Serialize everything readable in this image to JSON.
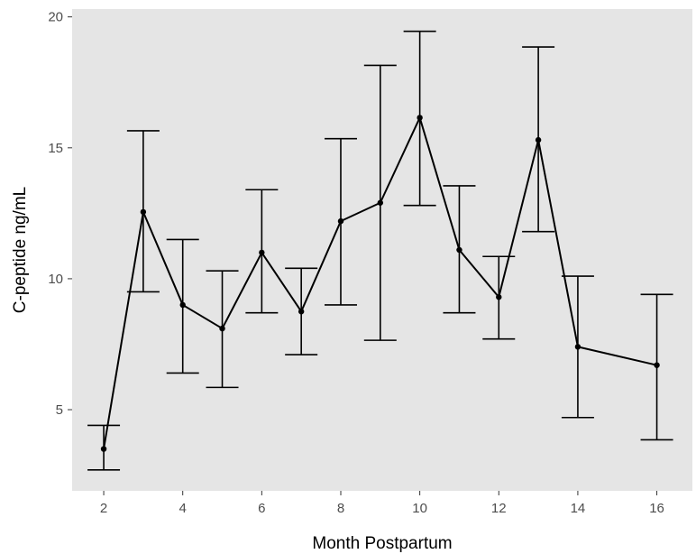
{
  "colors": {
    "panel_background": "#e5e5e5",
    "series": "#000000",
    "tick_label": "#4d4d4d"
  },
  "chart_data": {
    "type": "line",
    "title": "",
    "xlabel": "Month Postpartum",
    "ylabel": "C-peptide ng/mL",
    "xlim": [
      1.2,
      16.9
    ],
    "ylim": [
      1.9,
      20.3
    ],
    "x_ticks": [
      2,
      4,
      6,
      8,
      10,
      12,
      14,
      16
    ],
    "y_ticks": [
      5,
      10,
      15,
      20
    ],
    "grid": false,
    "legend": "none",
    "error_bars": true,
    "series": [
      {
        "points": [
          {
            "x": 2,
            "y": 3.5,
            "lower": 2.7,
            "upper": 4.4
          },
          {
            "x": 3,
            "y": 12.55,
            "lower": 9.5,
            "upper": 15.65
          },
          {
            "x": 4,
            "y": 9.0,
            "lower": 6.4,
            "upper": 11.5
          },
          {
            "x": 5,
            "y": 8.1,
            "lower": 5.85,
            "upper": 10.3
          },
          {
            "x": 6,
            "y": 11.0,
            "lower": 8.7,
            "upper": 13.4
          },
          {
            "x": 7,
            "y": 8.75,
            "lower": 7.1,
            "upper": 10.4
          },
          {
            "x": 8,
            "y": 12.2,
            "lower": 9.0,
            "upper": 15.35
          },
          {
            "x": 9,
            "y": 12.9,
            "lower": 7.65,
            "upper": 18.15
          },
          {
            "x": 10,
            "y": 16.15,
            "lower": 12.8,
            "upper": 19.45
          },
          {
            "x": 11,
            "y": 11.1,
            "lower": 8.7,
            "upper": 13.55
          },
          {
            "x": 12,
            "y": 9.3,
            "lower": 7.7,
            "upper": 10.85
          },
          {
            "x": 13,
            "y": 15.3,
            "lower": 11.8,
            "upper": 18.85
          },
          {
            "x": 14,
            "y": 7.4,
            "lower": 4.7,
            "upper": 10.1
          },
          {
            "x": 16,
            "y": 6.7,
            "lower": 3.85,
            "upper": 9.4
          }
        ]
      }
    ]
  }
}
